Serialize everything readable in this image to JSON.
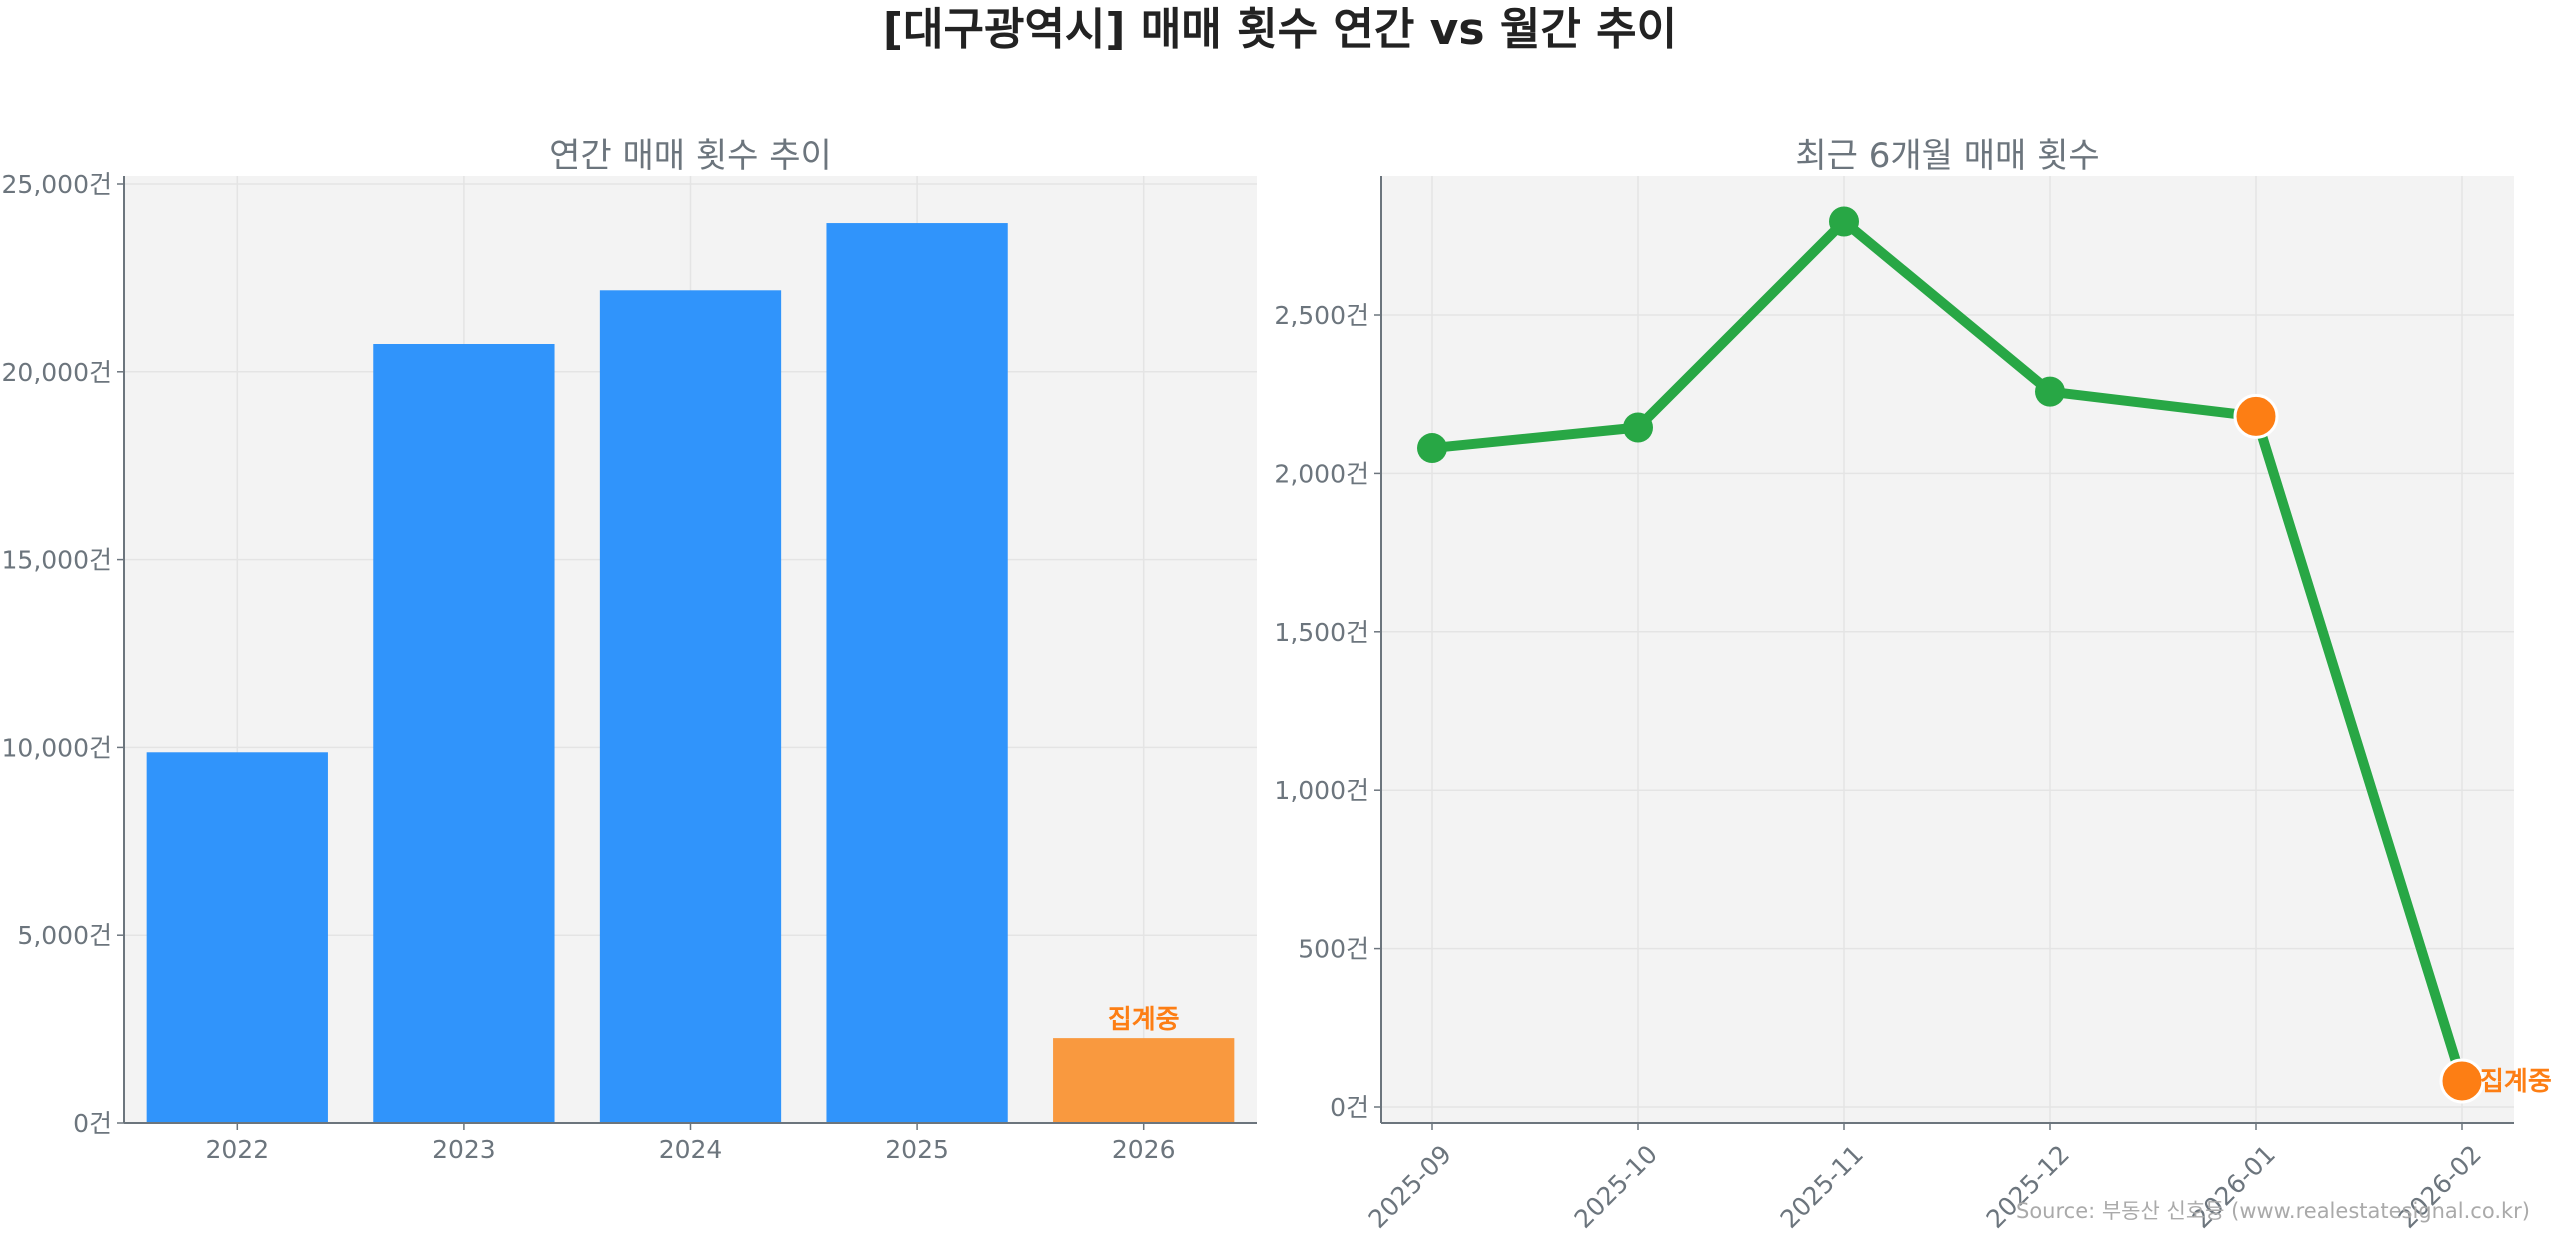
{
  "title": "[대구광역시] 매매 횟수 연간 vs 월간 추이",
  "source": "Source: 부동산 신호등 (www.realestatesignal.co.kr)",
  "colors": {
    "bar": "#3094fb",
    "bar_partial": "#f9993f",
    "line": "#28a745",
    "partial_marker": "#fd7e14",
    "axis_text": "#6c757d",
    "plot_bg": "#f3f3f3"
  },
  "chart_data": [
    {
      "type": "bar",
      "title": "연간 매매 횟수 추이",
      "categories": [
        "2022",
        "2023",
        "2024",
        "2025",
        "2026"
      ],
      "values": [
        9870,
        20740,
        22170,
        23960,
        2260
      ],
      "ylim": [
        0,
        25000
      ],
      "yticks": [
        0,
        5000,
        10000,
        15000,
        20000,
        25000
      ],
      "ytick_labels": [
        "0건",
        "5,000건",
        "10,000건",
        "15,000건",
        "20,000건",
        "25,000건"
      ],
      "annotation": {
        "category": "2026",
        "text": "집계중"
      },
      "grid": true
    },
    {
      "type": "line",
      "title": "최근 6개월 매매 횟수",
      "categories": [
        "2025-09",
        "2025-10",
        "2025-11",
        "2025-12",
        "2026-01",
        "2026-02"
      ],
      "values": [
        2080,
        2145,
        2795,
        2258,
        2180,
        82
      ],
      "partial_points": [
        "2026-01",
        "2026-02"
      ],
      "ylim": [
        -40,
        2920
      ],
      "yticks": [
        0,
        500,
        1000,
        1500,
        2000,
        2500
      ],
      "ytick_labels": [
        "0건",
        "500건",
        "1,000건",
        "1,500건",
        "2,000건",
        "2,500건"
      ],
      "annotation": {
        "category": "2026-02",
        "text": "집계중"
      },
      "grid": true
    }
  ]
}
